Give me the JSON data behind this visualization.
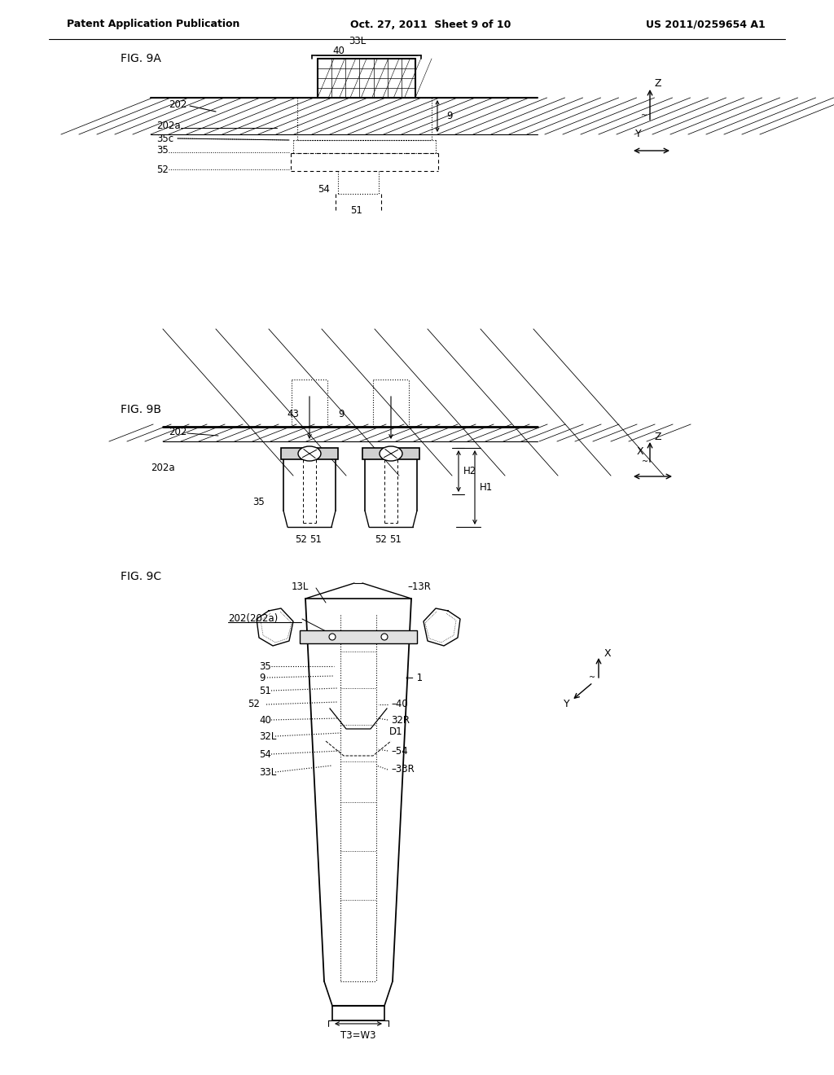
{
  "bg_color": "#ffffff",
  "header_left": "Patent Application Publication",
  "header_center": "Oct. 27, 2011  Sheet 9 of 10",
  "header_right": "US 2011/0259654 A1",
  "fig9a_label": "FIG. 9A",
  "fig9b_label": "FIG. 9B",
  "fig9c_label": "FIG. 9C"
}
